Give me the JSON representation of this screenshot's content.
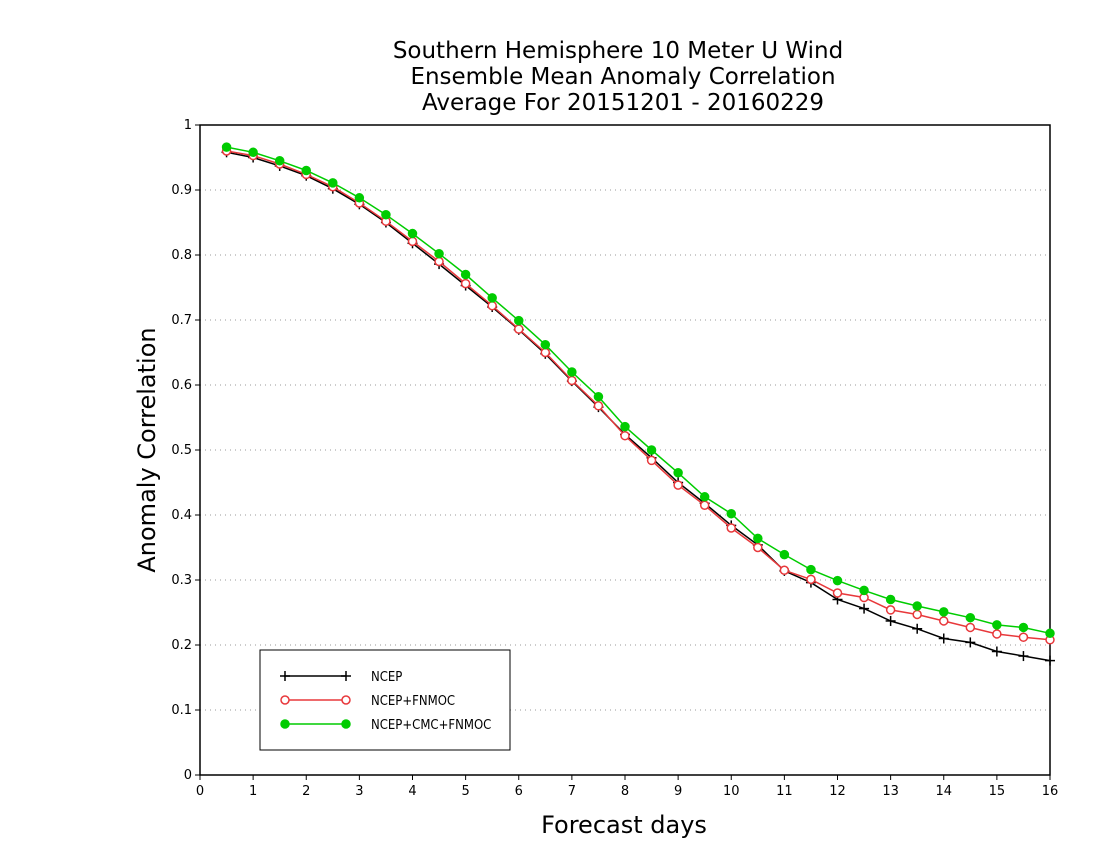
{
  "chart_data": {
    "type": "line",
    "title_lines": [
      "Southern Hemisphere 10 Meter U Wind",
      "Ensemble Mean Anomaly Correlation",
      "Average For 20151201 - 20160229"
    ],
    "xlabel": "Forecast days",
    "ylabel": "Anomaly Correlation",
    "xlim": [
      0,
      16
    ],
    "ylim": [
      0,
      1
    ],
    "x_ticks": [
      "0",
      "1",
      "2",
      "3",
      "4",
      "5",
      "6",
      "7",
      "8",
      "9",
      "10",
      "11",
      "12",
      "13",
      "14",
      "15",
      "16"
    ],
    "y_ticks": [
      "0",
      "0.1",
      "0.2",
      "0.3",
      "0.4",
      "0.5",
      "0.6",
      "0.7",
      "0.8",
      "0.9",
      "1"
    ],
    "grid": "horizontal dotted",
    "legend_position": "bottom-left",
    "x": [
      0.5,
      1,
      1.5,
      2,
      2.5,
      3,
      3.5,
      4,
      4.5,
      5,
      5.5,
      6,
      6.5,
      7,
      7.5,
      8,
      8.5,
      9,
      9.5,
      10,
      10.5,
      11,
      11.5,
      12,
      12.5,
      13,
      13.5,
      14,
      14.5,
      15,
      15.5,
      16
    ],
    "series": [
      {
        "name": "NCEP",
        "color": "#000000",
        "marker": "plus",
        "values": [
          0.958,
          0.95,
          0.937,
          0.922,
          0.902,
          0.878,
          0.85,
          0.818,
          0.786,
          0.753,
          0.72,
          0.685,
          0.648,
          0.606,
          0.566,
          0.524,
          0.488,
          0.45,
          0.418,
          0.384,
          0.354,
          0.314,
          0.296,
          0.27,
          0.256,
          0.237,
          0.225,
          0.21,
          0.204,
          0.19,
          0.183,
          0.176
        ]
      },
      {
        "name": "NCEP+FNMOC",
        "color": "#e8383b",
        "marker": "open-circle",
        "values": [
          0.96,
          0.953,
          0.94,
          0.924,
          0.905,
          0.88,
          0.852,
          0.821,
          0.79,
          0.756,
          0.722,
          0.686,
          0.65,
          0.607,
          0.568,
          0.522,
          0.484,
          0.446,
          0.415,
          0.38,
          0.35,
          0.315,
          0.301,
          0.28,
          0.273,
          0.254,
          0.247,
          0.237,
          0.227,
          0.217,
          0.212,
          0.208
        ]
      },
      {
        "name": "NCEP+CMC+FNMOC",
        "color": "#00cc00",
        "marker": "filled-circle",
        "values": [
          0.966,
          0.958,
          0.945,
          0.93,
          0.911,
          0.888,
          0.862,
          0.833,
          0.802,
          0.77,
          0.734,
          0.699,
          0.662,
          0.62,
          0.582,
          0.536,
          0.5,
          0.465,
          0.428,
          0.402,
          0.364,
          0.339,
          0.316,
          0.299,
          0.284,
          0.27,
          0.26,
          0.251,
          0.242,
          0.231,
          0.227,
          0.218
        ]
      }
    ]
  }
}
